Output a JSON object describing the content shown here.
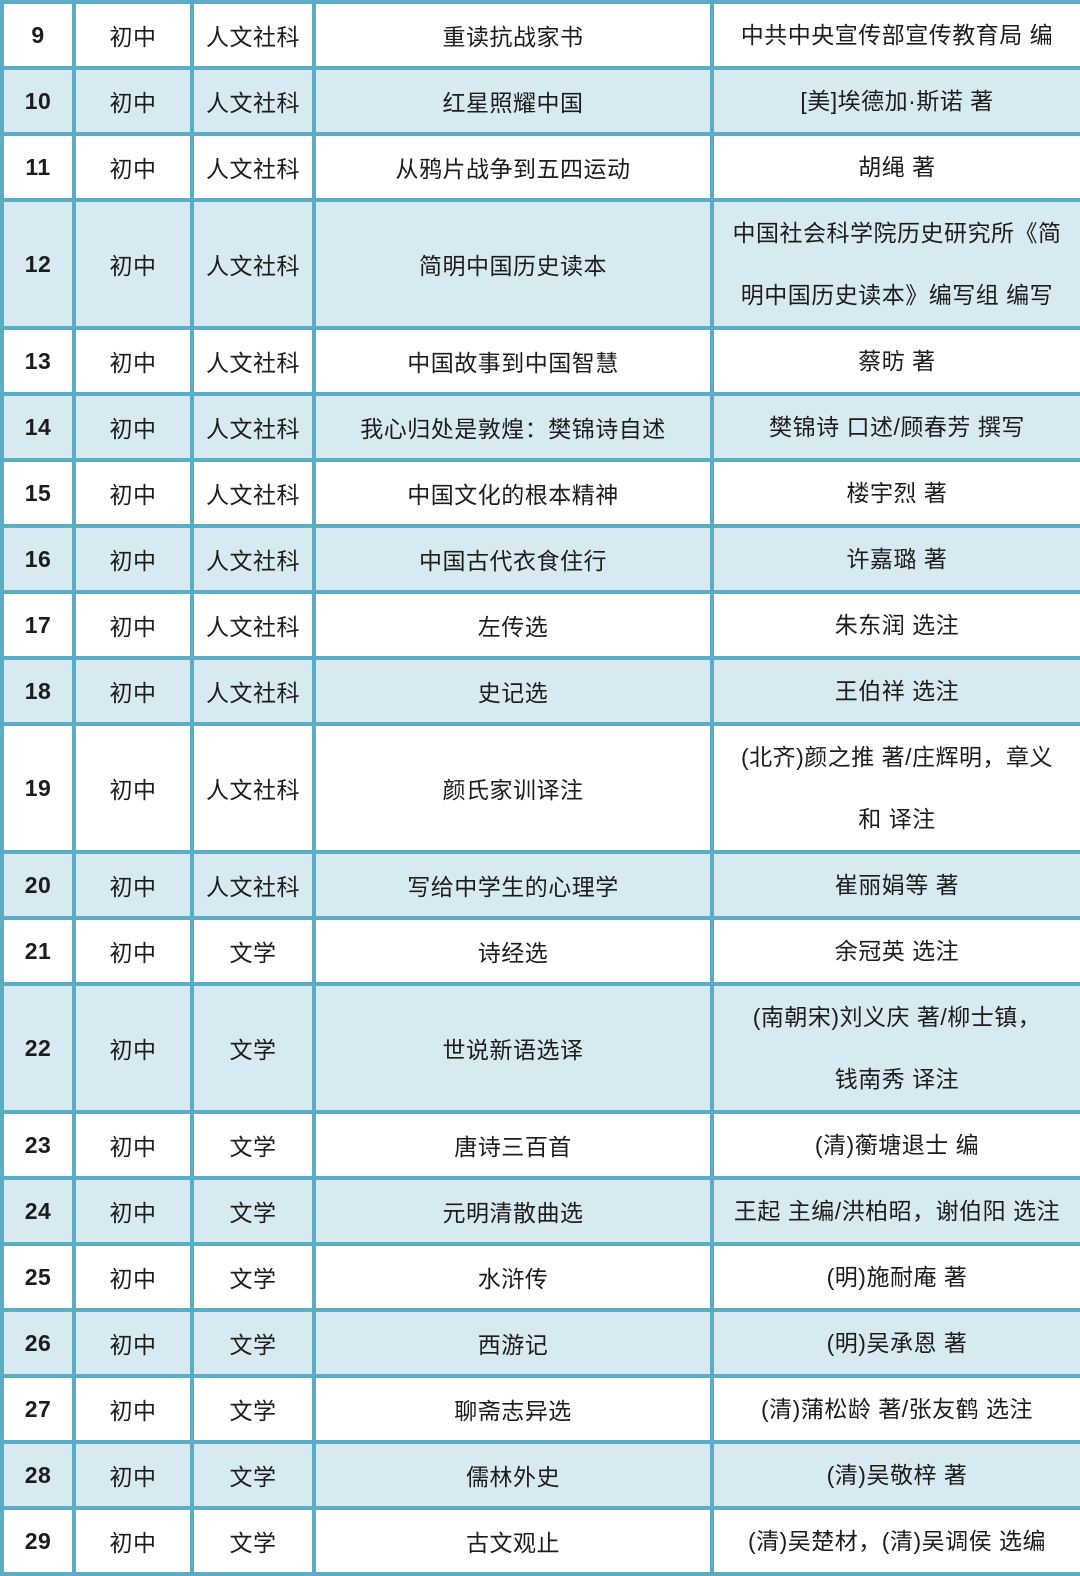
{
  "colors": {
    "border": "#5badc6",
    "row_shaded": "#d7eaf2",
    "row_plain": "#ffffff",
    "cell_text": "#1c1c1c",
    "number_text": "#111826"
  },
  "table": {
    "rows": [
      {
        "num": "9",
        "stage": "初中",
        "category": "人文社科",
        "title": "重读抗战家书",
        "author_lines": [
          "中共中央宣传部宣传教育局 编"
        ]
      },
      {
        "num": "10",
        "stage": "初中",
        "category": "人文社科",
        "title": "红星照耀中国",
        "author_lines": [
          "[美]埃德加·斯诺 著"
        ]
      },
      {
        "num": "11",
        "stage": "初中",
        "category": "人文社科",
        "title": "从鸦片战争到五四运动",
        "author_lines": [
          "胡绳 著"
        ]
      },
      {
        "num": "12",
        "stage": "初中",
        "category": "人文社科",
        "title": "简明中国历史读本",
        "author_lines": [
          "中国社会科学院历史研究所《简",
          "明中国历史读本》编写组 编写"
        ]
      },
      {
        "num": "13",
        "stage": "初中",
        "category": "人文社科",
        "title": "中国故事到中国智慧",
        "author_lines": [
          "蔡昉 著"
        ]
      },
      {
        "num": "14",
        "stage": "初中",
        "category": "人文社科",
        "title": "我心归处是敦煌：樊锦诗自述",
        "author_lines": [
          "樊锦诗 口述/顾春芳 撰写"
        ]
      },
      {
        "num": "15",
        "stage": "初中",
        "category": "人文社科",
        "title": "中国文化的根本精神",
        "author_lines": [
          "楼宇烈 著"
        ]
      },
      {
        "num": "16",
        "stage": "初中",
        "category": "人文社科",
        "title": "中国古代衣食住行",
        "author_lines": [
          "许嘉璐 著"
        ]
      },
      {
        "num": "17",
        "stage": "初中",
        "category": "人文社科",
        "title": "左传选",
        "author_lines": [
          "朱东润 选注"
        ]
      },
      {
        "num": "18",
        "stage": "初中",
        "category": "人文社科",
        "title": "史记选",
        "author_lines": [
          "王伯祥 选注"
        ]
      },
      {
        "num": "19",
        "stage": "初中",
        "category": "人文社科",
        "title": "颜氏家训译注",
        "author_lines": [
          "(北齐)颜之推 著/庄辉明，章义",
          "和 译注"
        ]
      },
      {
        "num": "20",
        "stage": "初中",
        "category": "人文社科",
        "title": "写给中学生的心理学",
        "author_lines": [
          "崔丽娟等 著"
        ]
      },
      {
        "num": "21",
        "stage": "初中",
        "category": "文学",
        "title": "诗经选",
        "author_lines": [
          "余冠英 选注"
        ]
      },
      {
        "num": "22",
        "stage": "初中",
        "category": "文学",
        "title": "世说新语选译",
        "author_lines": [
          "(南朝宋)刘义庆 著/柳士镇，",
          "钱南秀 译注"
        ]
      },
      {
        "num": "23",
        "stage": "初中",
        "category": "文学",
        "title": "唐诗三百首",
        "author_lines": [
          "(清)蘅塘退士 编"
        ]
      },
      {
        "num": "24",
        "stage": "初中",
        "category": "文学",
        "title": "元明清散曲选",
        "author_lines": [
          "王起 主编/洪柏昭，谢伯阳 选注"
        ]
      },
      {
        "num": "25",
        "stage": "初中",
        "category": "文学",
        "title": "水浒传",
        "author_lines": [
          "(明)施耐庵 著"
        ]
      },
      {
        "num": "26",
        "stage": "初中",
        "category": "文学",
        "title": "西游记",
        "author_lines": [
          "(明)吴承恩 著"
        ]
      },
      {
        "num": "27",
        "stage": "初中",
        "category": "文学",
        "title": "聊斋志异选",
        "author_lines": [
          "(清)蒲松龄 著/张友鹤 选注"
        ]
      },
      {
        "num": "28",
        "stage": "初中",
        "category": "文学",
        "title": "儒林外史",
        "author_lines": [
          "(清)吴敬梓 著"
        ]
      },
      {
        "num": "29",
        "stage": "初中",
        "category": "文学",
        "title": "古文观止",
        "author_lines": [
          "(清)吴楚材，(清)吴调侯 选编"
        ]
      }
    ]
  }
}
